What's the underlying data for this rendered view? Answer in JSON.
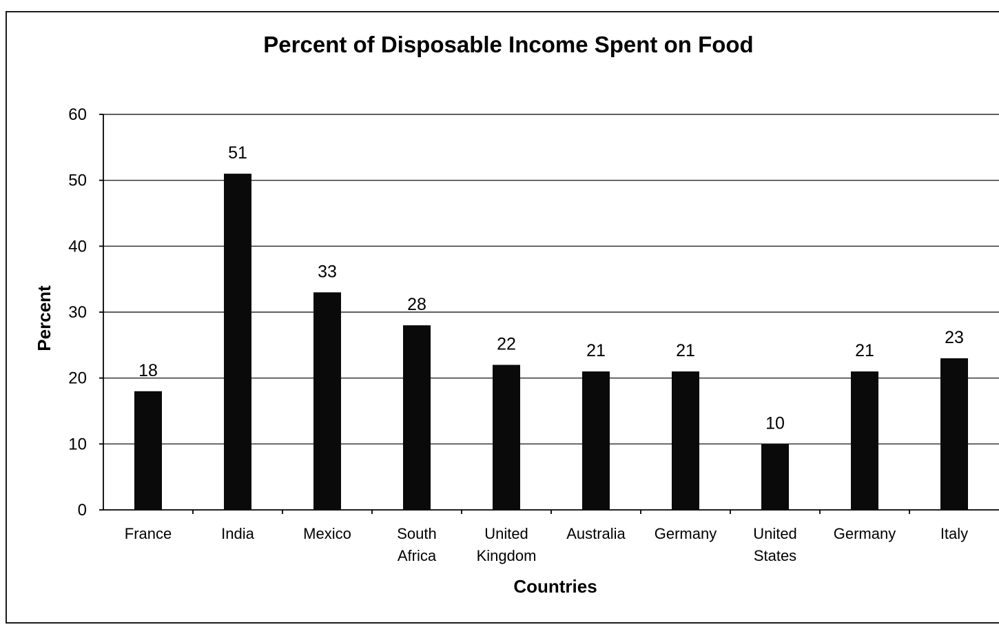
{
  "chart_data": {
    "type": "bar",
    "title": "Percent of Disposable Income Spent on Food",
    "xlabel": "Countries",
    "ylabel": "Percent",
    "categories": [
      [
        "France"
      ],
      [
        "India"
      ],
      [
        "Mexico"
      ],
      [
        "South",
        "Africa"
      ],
      [
        "United",
        "Kingdom"
      ],
      [
        "Australia"
      ],
      [
        "Germany"
      ],
      [
        "United",
        "States"
      ],
      [
        "Germany"
      ],
      [
        "Italy"
      ]
    ],
    "values": [
      18,
      51,
      33,
      28,
      22,
      21,
      21,
      10,
      21,
      23
    ],
    "ylim": [
      0,
      60
    ],
    "yticks": [
      0,
      10,
      20,
      30,
      40,
      50,
      60
    ],
    "grid": true,
    "legend": "none",
    "colors": {
      "bar": "#0a0a0a",
      "grid": "#2a2a2a",
      "text": "#000000"
    }
  }
}
